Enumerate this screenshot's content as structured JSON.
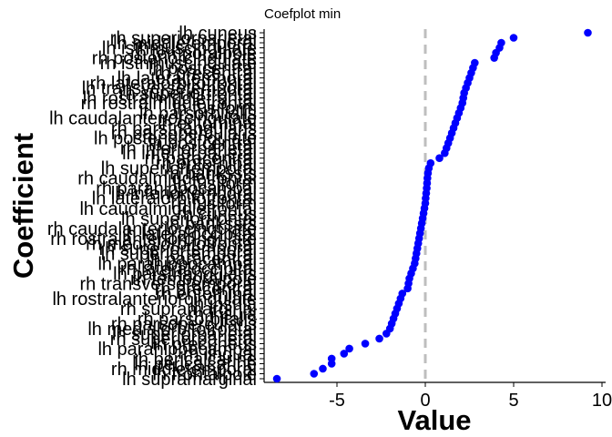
{
  "chart_data": {
    "type": "scatter",
    "title": "Coefplot min",
    "xlabel": "Value",
    "ylabel": "Coefficient",
    "xlim": [
      -9,
      10
    ],
    "xticks": [
      -5,
      0,
      5,
      10
    ],
    "xtick_labels": [
      "-5",
      "0",
      "5",
      "10"
    ],
    "reference_line": {
      "x": 0,
      "style": "dashed",
      "color": "#bebebe"
    },
    "marker_color": "#0000ff",
    "grid": false,
    "categories": [
      "lh supramarginal",
      "lh frontalpole",
      "rh middletemporal",
      "lh pericalcarine",
      "rh pericalcarine",
      "rh lingual",
      "lh parahippocampal",
      "lh precuneus",
      "rh superiorparietal",
      "lh superiorparietal",
      "lh medialorbitofrontal",
      "rh parsopercularis",
      "rh parsorbitalis",
      "rh insula",
      "rh supramarginal",
      "lh insula",
      "lh rostralanteriorcingulate",
      "rh entorhinal",
      "rh precentral",
      "rh transversetemporal",
      "rh temporalpole",
      "lh parstriangularis",
      "rh lateraloccipital",
      "lh parahippocampal",
      "lh paracentral",
      "lh superiortemporal",
      "rh superiortemporal",
      "rh medialorbitofrontal",
      "rh rostralanteriorcingulate",
      "lh lateraloccipital",
      "rh caudalanteriorcingulate",
      "lh bankssts",
      "lh superiorfrontal",
      "rh cuneus",
      "lh caudalmiddlefrontal",
      "rh fusiform",
      "lh lateralorbitofrontal",
      "lh inferiortemporal",
      "rh parahippocampal",
      "lh fusiform",
      "rh caudalmiddlefrontal",
      "rh bankssts",
      "lh superiortemporal",
      "rh entorhinal",
      "rh paracentral",
      "lh inferiorparietal",
      "rh inferiorparietal",
      "lh postcentral",
      "lh posteriorcingulate",
      "rh parsopercularis",
      "rh parstriangularis",
      "lh entorhinal",
      "lh caudalanteriorcingulate",
      "lh parsorbitalis",
      "lh fusiform",
      "rh rostralmiddlefrontal",
      "lh rostralmiddlefrontal",
      "rh superiorfrontal",
      "lh transversetemporal",
      "rh lateralorbitofrontal",
      "lh lateraltemporal",
      "rh precentral",
      "lh postcentral",
      "rh isthmuscingulate",
      "rh posteriorcingulate",
      "rh temporalpole",
      "lh isthmuscingulate",
      "lh middletemporal",
      "rh superiorparietal",
      "lh cuneus"
    ],
    "values": [
      -8.4,
      -6.3,
      -5.8,
      -5.3,
      -5.3,
      -4.6,
      -4.3,
      -3.4,
      -2.6,
      -2.2,
      -2.0,
      -1.9,
      -1.8,
      -1.7,
      -1.6,
      -1.5,
      -1.4,
      -1.3,
      -1.0,
      -0.95,
      -0.9,
      -0.8,
      -0.7,
      -0.6,
      -0.55,
      -0.5,
      -0.45,
      -0.4,
      -0.35,
      -0.3,
      -0.25,
      -0.2,
      -0.15,
      -0.1,
      -0.05,
      0.0,
      0.02,
      0.05,
      0.08,
      0.1,
      0.12,
      0.15,
      0.2,
      0.3,
      0.8,
      1.1,
      1.2,
      1.3,
      1.4,
      1.5,
      1.6,
      1.7,
      1.8,
      1.9,
      2.0,
      2.1,
      2.15,
      2.2,
      2.3,
      2.4,
      2.5,
      2.6,
      2.7,
      2.8,
      3.9,
      4.0,
      4.2,
      4.3,
      5.0,
      9.2
    ]
  }
}
